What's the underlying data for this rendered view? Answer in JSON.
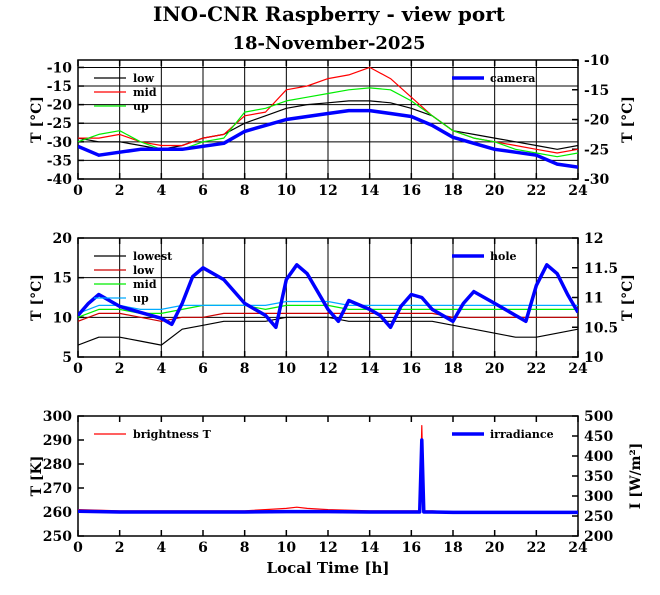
{
  "title": "INO-CNR Raspberry - view port",
  "subtitle": "18-November-2025",
  "xlabel": "Local Time [h]",
  "chart_data": [
    {
      "type": "line",
      "id": "panel1",
      "ylabel": "T [°C]",
      "y2label": "T [°C]",
      "xlim": [
        0,
        24
      ],
      "ylim": [
        -40,
        -8
      ],
      "y2lim": [
        -30,
        -10
      ],
      "xticks": [
        "0",
        "2",
        "4",
        "6",
        "8",
        "10",
        "12",
        "14",
        "16",
        "18",
        "20",
        "22",
        "24"
      ],
      "yticks": [
        "-40",
        "-35",
        "-30",
        "-25",
        "-20",
        "-15",
        "-10"
      ],
      "y2ticks": [
        "-30",
        "-25",
        "-20",
        "-15",
        "-10"
      ],
      "grid": true,
      "legend": "top-left",
      "legend2": "top-right",
      "series": [
        {
          "name": "low",
          "color": "#000000",
          "axis": "left",
          "x": [
            0,
            1,
            2,
            3,
            4,
            5,
            6,
            7,
            8,
            9,
            10,
            11,
            12,
            13,
            14,
            15,
            16,
            17,
            18,
            19,
            20,
            21,
            22,
            23,
            24
          ],
          "y": [
            -29,
            -30,
            -30,
            -31,
            -32,
            -31,
            -29,
            -28,
            -25,
            -23,
            -21,
            -20,
            -19.5,
            -19,
            -19,
            -19.5,
            -21,
            -23,
            -27,
            -28,
            -29,
            -30,
            -31,
            -32,
            -31
          ]
        },
        {
          "name": "mid",
          "color": "#ff0000",
          "axis": "left",
          "x": [
            0,
            1,
            2,
            3,
            4,
            5,
            6,
            7,
            8,
            9,
            10,
            11,
            12,
            13,
            14,
            15,
            16,
            17,
            18,
            19,
            20,
            21,
            22,
            23,
            24
          ],
          "y": [
            -29,
            -29,
            -28,
            -30,
            -31,
            -31,
            -29,
            -28,
            -23,
            -22,
            -16,
            -15,
            -13,
            -12,
            -10,
            -13,
            -18,
            -23,
            -27,
            -29,
            -30,
            -31,
            -32,
            -33,
            -32
          ]
        },
        {
          "name": "up",
          "color": "#00ee00",
          "axis": "left",
          "x": [
            0,
            1,
            2,
            3,
            4,
            5,
            6,
            7,
            8,
            9,
            10,
            11,
            12,
            13,
            14,
            15,
            16,
            17,
            18,
            19,
            20,
            21,
            22,
            23,
            24
          ],
          "y": [
            -30,
            -28,
            -27,
            -30,
            -32,
            -32,
            -30,
            -29,
            -22,
            -21,
            -19,
            -18,
            -17,
            -16,
            -15.5,
            -16,
            -19,
            -23,
            -27,
            -29,
            -30,
            -32,
            -33,
            -34,
            -33
          ]
        }
      ],
      "series2": [
        {
          "name": "camera",
          "color": "#0000ff",
          "axis": "right",
          "x": [
            0,
            1,
            2,
            3,
            4,
            5,
            6,
            7,
            8,
            9,
            10,
            11,
            12,
            13,
            14,
            15,
            16,
            17,
            18,
            19,
            20,
            21,
            22,
            23,
            24
          ],
          "y": [
            -24.5,
            -26,
            -25.5,
            -25,
            -25,
            -25,
            -24.5,
            -24,
            -22,
            -21,
            -20,
            -19.5,
            -19,
            -18.5,
            -18.5,
            -19,
            -19.5,
            -21,
            -23,
            -24,
            -25,
            -25.5,
            -26,
            -27.5,
            -28
          ]
        }
      ]
    },
    {
      "type": "line",
      "id": "panel2",
      "ylabel": "T [°C]",
      "y2label": "T [°C]",
      "xlim": [
        0,
        24
      ],
      "ylim": [
        5,
        20
      ],
      "y2lim": [
        10,
        12
      ],
      "xticks": [
        "0",
        "2",
        "4",
        "6",
        "8",
        "10",
        "12",
        "14",
        "16",
        "18",
        "20",
        "22",
        "24"
      ],
      "yticks": [
        "5",
        "10",
        "15",
        "20"
      ],
      "y2ticks": [
        "10",
        "10.5",
        "11",
        "11.5",
        "12"
      ],
      "grid": true,
      "legend": "top-left",
      "legend2": "top-right",
      "series": [
        {
          "name": "lowest",
          "color": "#000000",
          "axis": "left",
          "x": [
            0,
            1,
            2,
            3,
            4,
            5,
            6,
            7,
            8,
            9,
            10,
            11,
            12,
            13,
            14,
            15,
            16,
            17,
            18,
            19,
            20,
            21,
            22,
            23,
            24
          ],
          "y": [
            6.5,
            7.5,
            7.5,
            7,
            6.5,
            8.5,
            9,
            9.5,
            9.5,
            9.5,
            10,
            10,
            10,
            9.5,
            9.5,
            9.5,
            9.5,
            9.5,
            9,
            8.5,
            8,
            7.5,
            7.5,
            8,
            8.5
          ]
        },
        {
          "name": "low",
          "color": "#cc0000",
          "axis": "left",
          "x": [
            0,
            1,
            2,
            3,
            4,
            5,
            6,
            7,
            8,
            9,
            10,
            11,
            12,
            13,
            14,
            15,
            16,
            17,
            18,
            19,
            20,
            21,
            22,
            23,
            24
          ],
          "y": [
            9.5,
            10.5,
            10.5,
            10,
            9.5,
            10,
            10,
            10.5,
            10.5,
            10.5,
            10.5,
            10.5,
            10.5,
            10.5,
            10.5,
            10.5,
            10.5,
            10.5,
            10,
            10,
            10,
            10,
            10,
            10,
            10
          ]
        },
        {
          "name": "mid",
          "color": "#00ee00",
          "axis": "left",
          "x": [
            0,
            1,
            2,
            3,
            4,
            5,
            6,
            7,
            8,
            9,
            10,
            11,
            12,
            13,
            14,
            15,
            16,
            17,
            18,
            19,
            20,
            21,
            22,
            23,
            24
          ],
          "y": [
            10,
            11,
            11,
            10.5,
            10.5,
            11,
            11.5,
            11.5,
            11.5,
            11,
            11.5,
            11.5,
            11.5,
            11,
            11,
            11,
            11,
            11,
            11,
            11,
            11,
            11,
            11,
            11,
            11
          ]
        },
        {
          "name": "up",
          "color": "#00aaff",
          "axis": "left",
          "x": [
            0,
            1,
            2,
            3,
            4,
            5,
            6,
            7,
            8,
            9,
            10,
            11,
            12,
            13,
            14,
            15,
            16,
            17,
            18,
            19,
            20,
            21,
            22,
            23,
            24
          ],
          "y": [
            10.5,
            11.5,
            11.5,
            11,
            11,
            11.5,
            11.5,
            11.5,
            11.5,
            11.5,
            12,
            12,
            12,
            11.5,
            11.5,
            11.5,
            11.5,
            11.5,
            11.5,
            11.5,
            11.5,
            11.5,
            11.5,
            11.5,
            11.5
          ]
        }
      ],
      "series2": [
        {
          "name": "hole",
          "color": "#0000ff",
          "axis": "right",
          "x": [
            0,
            0.5,
            1,
            2,
            3,
            4,
            4.5,
            5,
            5.5,
            6,
            7,
            8,
            9,
            9.5,
            10,
            10.5,
            11,
            12,
            12.5,
            13,
            14,
            14.5,
            15,
            15.5,
            16,
            16.5,
            17,
            18,
            18.5,
            19,
            20,
            20.5,
            21,
            21.5,
            22,
            22.5,
            23,
            23.5,
            24
          ],
          "y": [
            10.7,
            10.9,
            11.05,
            10.85,
            10.75,
            10.65,
            10.55,
            10.9,
            11.35,
            11.5,
            11.3,
            10.9,
            10.7,
            10.5,
            11.3,
            11.55,
            11.4,
            10.8,
            10.6,
            10.95,
            10.8,
            10.7,
            10.5,
            10.85,
            11.05,
            11.0,
            10.8,
            10.6,
            10.9,
            11.1,
            10.9,
            10.8,
            10.7,
            10.6,
            11.2,
            11.55,
            11.4,
            11.05,
            10.75
          ]
        }
      ]
    },
    {
      "type": "line",
      "id": "panel3",
      "ylabel": "T [K]",
      "y2label": "I [W/m²]",
      "xlim": [
        0,
        24
      ],
      "ylim": [
        250,
        300
      ],
      "y2lim": [
        200,
        500
      ],
      "xticks": [
        "0",
        "2",
        "4",
        "6",
        "8",
        "10",
        "12",
        "14",
        "16",
        "18",
        "20",
        "22",
        "24"
      ],
      "yticks": [
        "250",
        "260",
        "270",
        "280",
        "290",
        "300"
      ],
      "y2ticks": [
        "200",
        "250",
        "300",
        "350",
        "400",
        "450",
        "500"
      ],
      "grid": false,
      "legend": "top-left",
      "legend2": "top-right",
      "series": [
        {
          "name": "brightness T",
          "color": "#ff0000",
          "axis": "left",
          "x": [
            0,
            2,
            4,
            6,
            8,
            10,
            10.5,
            11,
            12,
            14,
            16,
            16.4,
            16.5,
            16.6,
            17,
            18,
            20,
            22,
            24
          ],
          "y": [
            261,
            260.5,
            260.5,
            260.5,
            260.5,
            261.5,
            262,
            261.5,
            261,
            260.5,
            260.5,
            260.5,
            296,
            260.5,
            260.5,
            260,
            260,
            260,
            260
          ]
        }
      ],
      "series2": [
        {
          "name": "irradiance",
          "color": "#0000ff",
          "axis": "right",
          "x": [
            0,
            2,
            4,
            6,
            8,
            10,
            12,
            14,
            16,
            16.4,
            16.5,
            16.6,
            17,
            18,
            20,
            22,
            24
          ],
          "y": [
            262,
            260,
            260,
            260,
            260,
            261,
            261,
            260,
            260,
            260,
            440,
            260,
            260,
            259,
            259,
            259,
            259
          ]
        }
      ]
    }
  ]
}
